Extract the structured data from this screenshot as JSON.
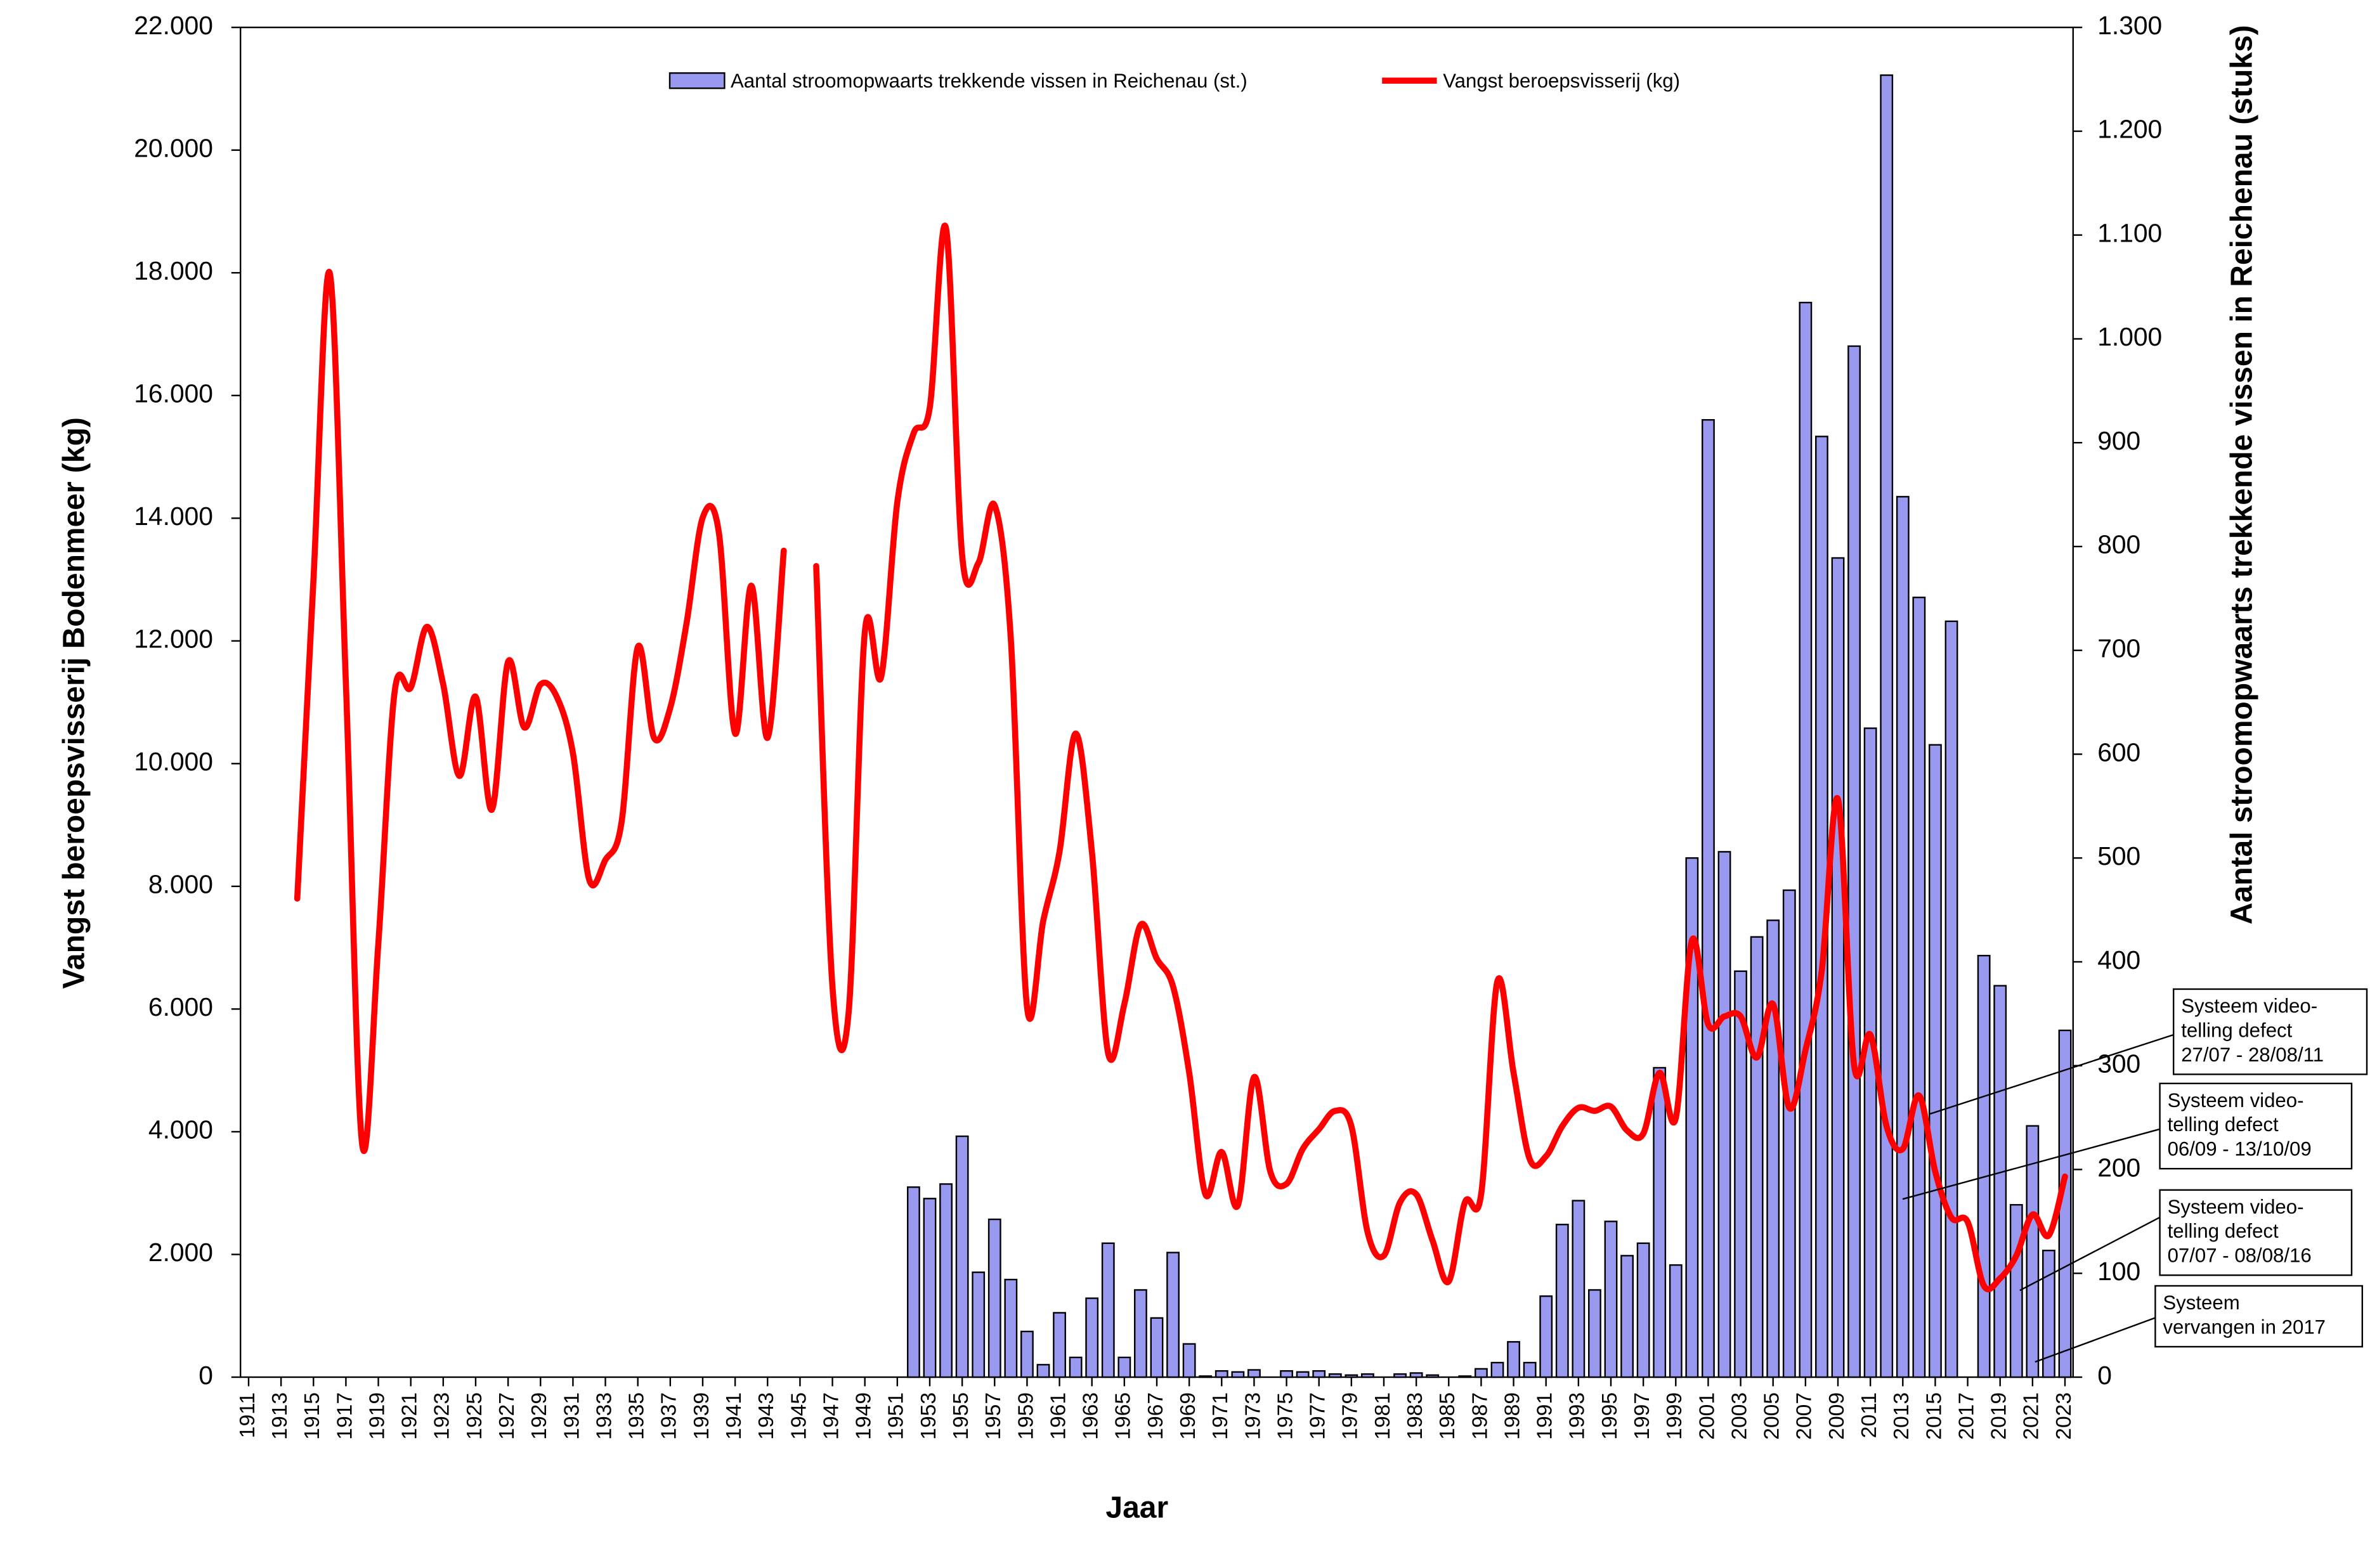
{
  "chart_data": {
    "type": "combo",
    "x_label": "Jaar",
    "y_label": "Vangst beroepsvisserij Bodenmeer (kg)",
    "y2_label": "Aantal stroomopwaarts trekkende vissen in Reichenau (stuks)",
    "legend": "top",
    "x": [
      1911,
      1912,
      1913,
      1914,
      1915,
      1916,
      1917,
      1918,
      1919,
      1920,
      1921,
      1922,
      1923,
      1924,
      1925,
      1926,
      1927,
      1928,
      1929,
      1930,
      1931,
      1932,
      1933,
      1934,
      1935,
      1936,
      1937,
      1938,
      1939,
      1940,
      1941,
      1942,
      1943,
      1944,
      1945,
      1946,
      1947,
      1948,
      1949,
      1950,
      1951,
      1952,
      1953,
      1954,
      1955,
      1956,
      1957,
      1958,
      1959,
      1960,
      1961,
      1962,
      1963,
      1964,
      1965,
      1966,
      1967,
      1968,
      1969,
      1970,
      1971,
      1972,
      1973,
      1974,
      1975,
      1976,
      1977,
      1978,
      1979,
      1980,
      1981,
      1982,
      1983,
      1984,
      1985,
      1986,
      1987,
      1988,
      1989,
      1990,
      1991,
      1992,
      1993,
      1994,
      1995,
      1996,
      1997,
      1998,
      1999,
      2000,
      2001,
      2002,
      2003,
      2004,
      2005,
      2006,
      2007,
      2008,
      2009,
      2010,
      2011,
      2012,
      2013,
      2014,
      2015,
      2016,
      2017,
      2018,
      2019,
      2020,
      2021,
      2022,
      2023
    ],
    "xlim": [
      1910.5,
      2023.5
    ],
    "xticks": [
      1911,
      1913,
      1915,
      1917,
      1919,
      1921,
      1923,
      1925,
      1927,
      1929,
      1931,
      1933,
      1935,
      1937,
      1939,
      1941,
      1943,
      1945,
      1947,
      1949,
      1951,
      1953,
      1955,
      1957,
      1959,
      1961,
      1963,
      1965,
      1967,
      1969,
      1971,
      1973,
      1975,
      1977,
      1979,
      1981,
      1983,
      1985,
      1987,
      1989,
      1991,
      1993,
      1995,
      1997,
      1999,
      2001,
      2003,
      2005,
      2007,
      2009,
      2011,
      2013,
      2015,
      2017,
      2019,
      2021,
      2023
    ],
    "ylim": [
      0,
      22000
    ],
    "yticks": [
      0,
      {
        "value": 2000,
        "label": "2.000"
      },
      {
        "value": 4000,
        "label": "4.000"
      },
      {
        "value": 6000,
        "label": "6.000"
      },
      {
        "value": 8000,
        "label": "8.000"
      },
      {
        "value": 10000,
        "label": "10.000"
      },
      {
        "value": 12000,
        "label": "12.000"
      },
      {
        "value": 14000,
        "label": "14.000"
      },
      {
        "value": 16000,
        "label": "16.000"
      },
      {
        "value": 18000,
        "label": "18.000"
      },
      {
        "value": 20000,
        "label": "20.000"
      },
      {
        "value": 22000,
        "label": "22.000"
      }
    ],
    "y2lim": [
      0,
      1300
    ],
    "y2ticks": [
      0,
      100,
      200,
      300,
      400,
      500,
      600,
      700,
      800,
      900,
      {
        "value": 1000,
        "label": "1.000"
      },
      {
        "value": 1100,
        "label": "1.100"
      },
      {
        "value": 1200,
        "label": "1.200"
      },
      {
        "value": 1300,
        "label": "1.300"
      }
    ],
    "series": [
      {
        "name": "Aantal stroomopwaarts trekkende vissen in Reichenau (st.)",
        "type": "bar",
        "axis": "y2",
        "color": "#9999f0",
        "values": [
          null,
          null,
          null,
          null,
          null,
          null,
          null,
          null,
          null,
          null,
          null,
          null,
          null,
          null,
          null,
          null,
          null,
          null,
          null,
          null,
          null,
          null,
          null,
          null,
          null,
          null,
          null,
          null,
          null,
          null,
          null,
          null,
          null,
          null,
          null,
          null,
          null,
          null,
          null,
          null,
          null,
          183,
          172,
          186,
          232,
          101,
          152,
          94,
          44,
          12,
          62,
          19,
          76,
          129,
          19,
          84,
          57,
          120,
          32,
          1,
          6,
          5,
          7,
          0,
          6,
          5,
          6,
          3,
          2,
          3,
          0,
          3,
          4,
          2,
          0,
          1,
          8,
          14,
          34,
          14,
          78,
          147,
          170,
          84,
          150,
          117,
          129,
          298,
          108,
          500,
          922,
          506,
          391,
          424,
          440,
          469,
          1035,
          906,
          789,
          993,
          625,
          1254,
          848,
          751,
          609,
          728,
          null,
          406,
          377,
          166,
          242,
          122,
          334
        ]
      },
      {
        "name": "Vangst beroepsvisserij (kg)",
        "type": "line",
        "axis": "y",
        "color": "#ff0000",
        "values": [
          null,
          null,
          null,
          7800,
          13000,
          18000,
          11300,
          3800,
          7070,
          11160,
          11240,
          12230,
          11290,
          9800,
          11090,
          9250,
          11660,
          10590,
          11290,
          11090,
          10170,
          8110,
          8430,
          9050,
          11900,
          10420,
          10910,
          12280,
          14010,
          13760,
          10490,
          12900,
          10420,
          13470,
          null,
          13220,
          6370,
          5950,
          12150,
          11410,
          14260,
          15380,
          15800,
          18730,
          13390,
          13270,
          14210,
          12030,
          6030,
          7440,
          8560,
          10490,
          8560,
          5280,
          6080,
          7370,
          6820,
          6370,
          4960,
          2980,
          3670,
          2800,
          4890,
          3350,
          3150,
          3720,
          4040,
          4340,
          4090,
          2360,
          1980,
          2850,
          2980,
          2230,
          1560,
          2850,
          2980,
          6450,
          4960,
          3550,
          3600,
          4090,
          4390,
          4340,
          4410,
          4020,
          3970,
          4960,
          4220,
          7120,
          5750,
          5880,
          5880,
          5210,
          6080,
          4390,
          5330,
          6620,
          9420,
          5080,
          5580,
          4090,
          3720,
          4590,
          3350,
          2600,
          2530,
          1490,
          1610,
          1980,
          2650,
          2310,
          3270
        ]
      }
    ],
    "annotations": [
      [
        "Systeem video-",
        "telling defect",
        "27/07 - 28/08/11"
      ],
      [
        "Systeem video-",
        "telling defect",
        "06/09 - 13/10/09"
      ],
      [
        "Systeem video-",
        "telling defect",
        "07/07 - 08/08/16"
      ],
      [
        "Systeem",
        "vervangen in 2017"
      ]
    ]
  }
}
